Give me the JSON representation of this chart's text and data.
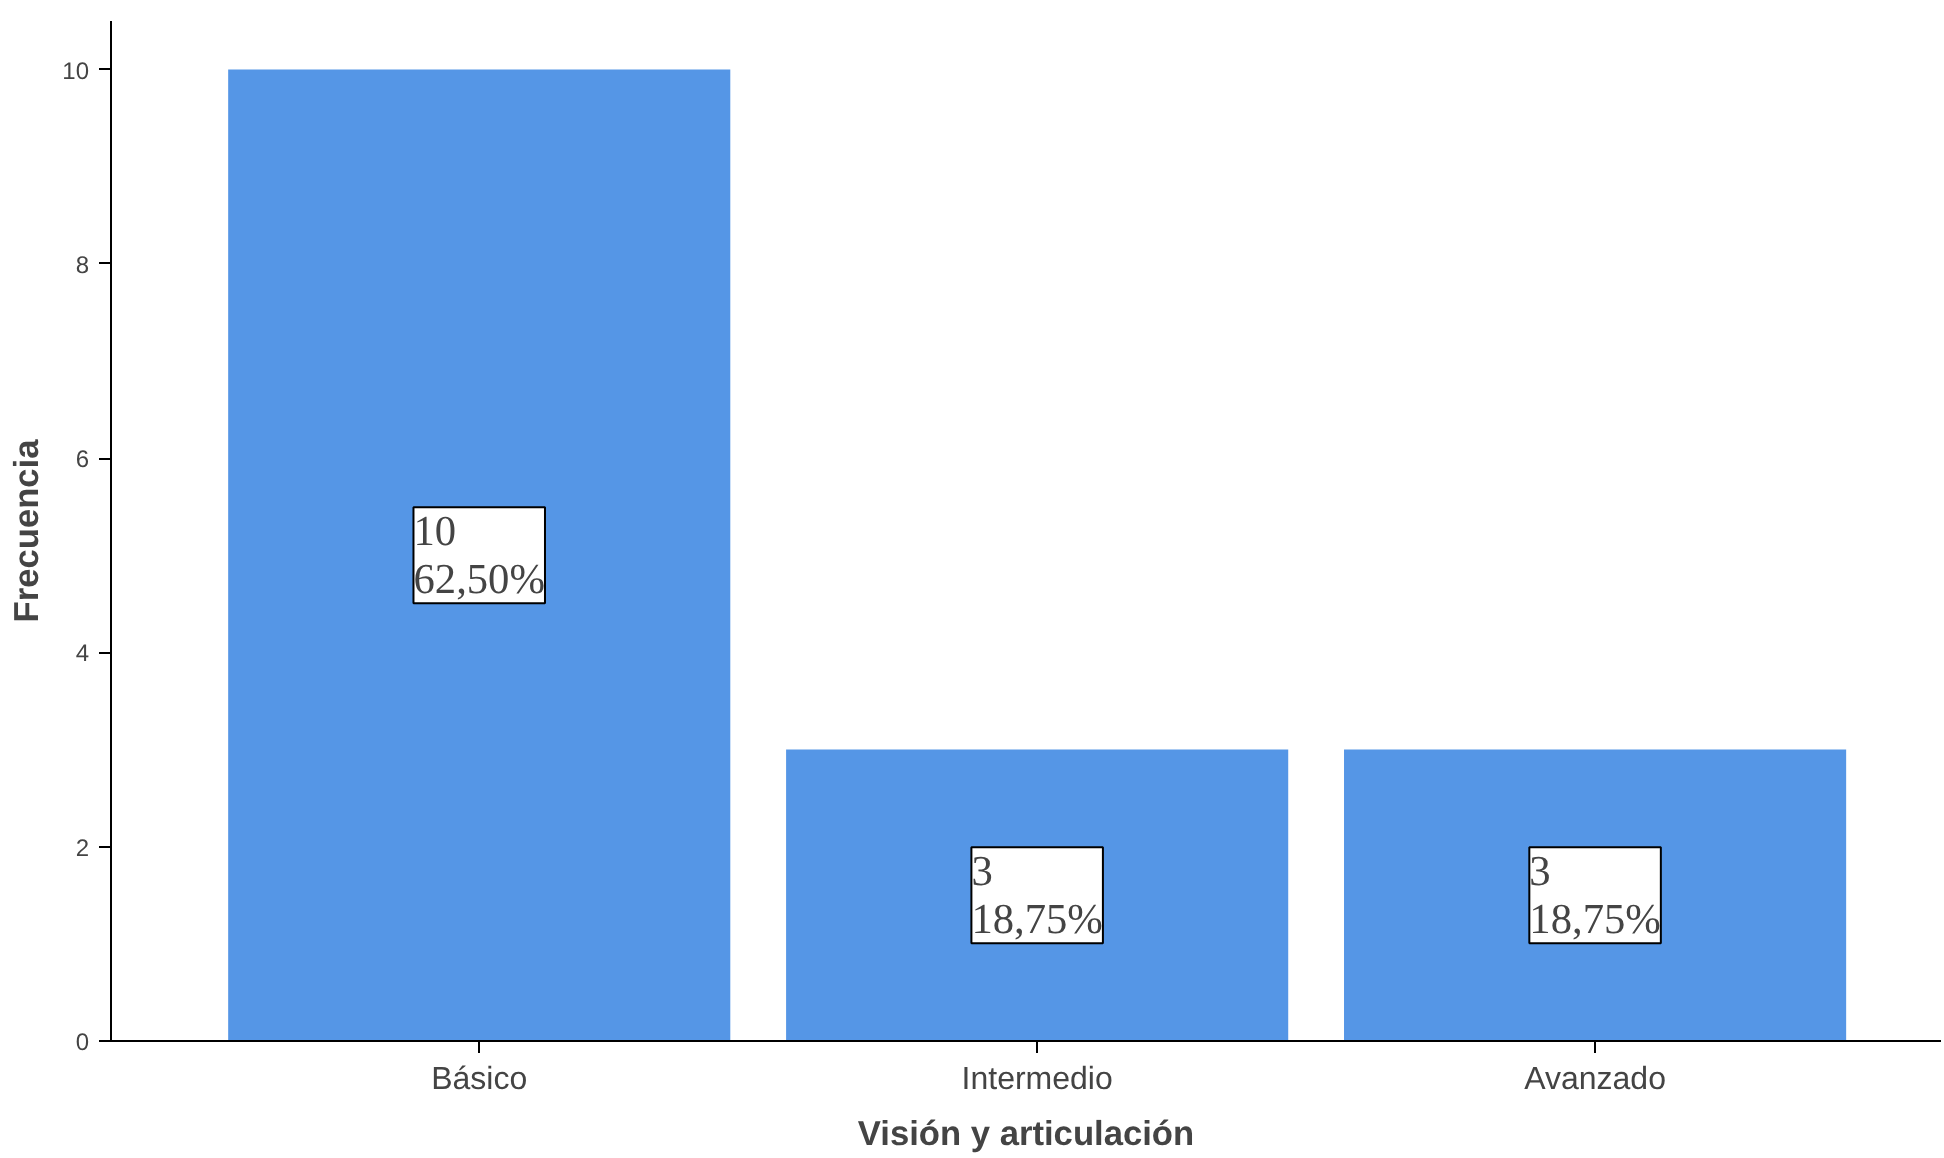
{
  "chart_data": {
    "type": "bar",
    "xlabel": "Visión y articulación",
    "ylabel": "Frecuencia",
    "categories": [
      "Básico",
      "Intermedio",
      "Avanzado"
    ],
    "values": [
      10,
      3,
      3
    ],
    "color": "#5596e6",
    "value_labels": [
      "10\n62,50%",
      "3\n18,75%",
      "3\n18,75%"
    ],
    "ylim": [
      0,
      10.5
    ],
    "yticks": [
      0,
      2,
      4,
      6,
      8,
      10
    ],
    "grid": false
  }
}
